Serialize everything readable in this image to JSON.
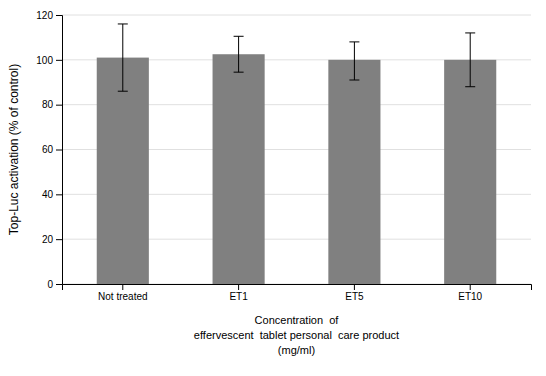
{
  "chart_data": {
    "type": "bar",
    "categories": [
      "Not treated",
      "ET1",
      "ET5",
      "ET10"
    ],
    "values": [
      101.0,
      102.5,
      100.0,
      100.0
    ],
    "errors_upper": [
      15.0,
      8.0,
      8.0,
      12.0
    ],
    "errors_lower": [
      15.0,
      8.0,
      9.0,
      12.0
    ],
    "color": "#808080",
    "ylabel": "Top-Luc activation (% of control)",
    "xlabel": [
      "Concentration  of",
      "effervescent  tablet personal  care product",
      "(mg/ml)"
    ],
    "ylim": [
      0,
      120
    ],
    "yticks": [
      0,
      20,
      40,
      60,
      80,
      100,
      120
    ],
    "grid": true
  }
}
